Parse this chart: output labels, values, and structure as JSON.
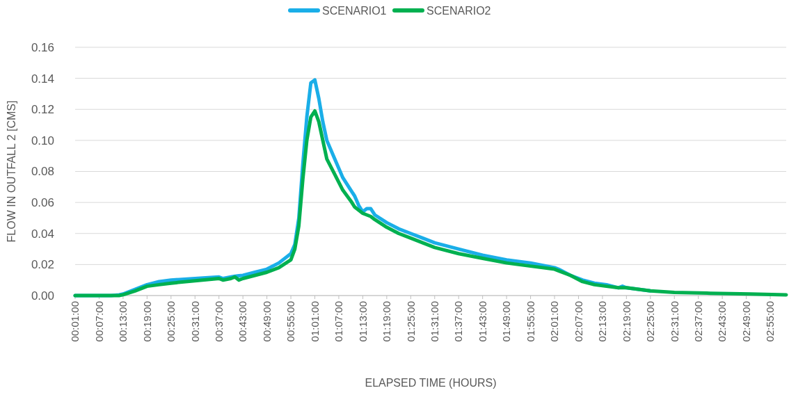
{
  "chart_data": {
    "type": "line",
    "xlabel": "ELAPSED TIME (HOURS)",
    "ylabel": "FLOW IN OUTFALL 2 [CMS]",
    "x": [
      0.0167,
      0.1667,
      0.2,
      0.2167,
      0.2667,
      0.3167,
      0.3667,
      0.4167,
      0.5167,
      0.6167,
      0.6333,
      0.6667,
      0.6833,
      0.7,
      0.7167,
      0.7667,
      0.8167,
      0.8667,
      0.9167,
      0.9333,
      0.95,
      0.9667,
      0.9833,
      1,
      1.0167,
      1.0333,
      1.05,
      1.0667,
      1.1,
      1.1333,
      1.1667,
      1.1833,
      1.2,
      1.2167,
      1.2333,
      1.25,
      1.2667,
      1.3167,
      1.3667,
      1.4167,
      1.4667,
      1.5167,
      1.6167,
      1.7167,
      1.8167,
      1.9167,
      2.0167,
      2.0333,
      2.0833,
      2.1333,
      2.1833,
      2.2333,
      2.2833,
      2.3,
      2.3167,
      2.4167,
      2.5167,
      2.6667,
      2.8333,
      2.9833
    ],
    "series": [
      {
        "name": "SCENARIO1",
        "color": "#1aaee8",
        "values": [
          0,
          0,
          0.0005,
          0.001,
          0.004,
          0.007,
          0.009,
          0.01,
          0.011,
          0.012,
          0.011,
          0.012,
          0.0125,
          0.0128,
          0.013,
          0.015,
          0.017,
          0.021,
          0.027,
          0.033,
          0.05,
          0.085,
          0.115,
          0.137,
          0.139,
          0.127,
          0.112,
          0.1,
          0.088,
          0.076,
          0.068,
          0.064,
          0.058,
          0.054,
          0.056,
          0.056,
          0.052,
          0.047,
          0.043,
          0.04,
          0.037,
          0.034,
          0.03,
          0.026,
          0.023,
          0.021,
          0.018,
          0.017,
          0.013,
          0.01,
          0.008,
          0.007,
          0.005,
          0.006,
          0.005,
          0.003,
          null,
          null,
          null,
          null
        ]
      },
      {
        "name": "SCENARIO2",
        "color": "#00b050",
        "values": [
          0,
          0,
          0,
          0.0005,
          0.003,
          0.006,
          0.007,
          0.008,
          0.0095,
          0.011,
          0.01,
          0.011,
          0.012,
          0.01,
          0.011,
          0.013,
          0.015,
          0.018,
          0.023,
          0.03,
          0.045,
          0.075,
          0.1,
          0.115,
          0.119,
          0.112,
          0.1,
          0.088,
          0.078,
          0.068,
          0.061,
          0.057,
          0.055,
          0.053,
          0.052,
          0.051,
          0.049,
          0.044,
          0.04,
          0.037,
          0.034,
          0.031,
          0.027,
          0.024,
          0.021,
          0.019,
          0.017,
          0.016,
          0.013,
          0.009,
          0.007,
          0.006,
          0.005,
          0.005,
          0.005,
          0.003,
          0.002,
          0.0015,
          0.001,
          0.0005
        ]
      }
    ],
    "xlim": [
      0.0167,
      2.9833
    ],
    "xticks": [
      {
        "value": 0.0167,
        "label": "00:01:00"
      },
      {
        "value": 0.1167,
        "label": "00:07:00"
      },
      {
        "value": 0.2167,
        "label": "00:13:00"
      },
      {
        "value": 0.3167,
        "label": "00:19:00"
      },
      {
        "value": 0.4167,
        "label": "00:25:00"
      },
      {
        "value": 0.5167,
        "label": "00:31:00"
      },
      {
        "value": 0.6167,
        "label": "00:37:00"
      },
      {
        "value": 0.7167,
        "label": "00:43:00"
      },
      {
        "value": 0.8167,
        "label": "00:49:00"
      },
      {
        "value": 0.9167,
        "label": "00:55:00"
      },
      {
        "value": 1.0167,
        "label": "01:01:00"
      },
      {
        "value": 1.1167,
        "label": "01:07:00"
      },
      {
        "value": 1.2167,
        "label": "01:13:00"
      },
      {
        "value": 1.3167,
        "label": "01:19:00"
      },
      {
        "value": 1.4167,
        "label": "01:25:00"
      },
      {
        "value": 1.5167,
        "label": "01:31:00"
      },
      {
        "value": 1.6167,
        "label": "01:37:00"
      },
      {
        "value": 1.7167,
        "label": "01:43:00"
      },
      {
        "value": 1.8167,
        "label": "01:49:00"
      },
      {
        "value": 1.9167,
        "label": "01:55:00"
      },
      {
        "value": 2.0167,
        "label": "02:01:00"
      },
      {
        "value": 2.1167,
        "label": "02:07:00"
      },
      {
        "value": 2.2167,
        "label": "02:13:00"
      },
      {
        "value": 2.3167,
        "label": "02:19:00"
      },
      {
        "value": 2.4167,
        "label": "02:25:00"
      },
      {
        "value": 2.5167,
        "label": "02:31:00"
      },
      {
        "value": 2.6167,
        "label": "02:37:00"
      },
      {
        "value": 2.7167,
        "label": "02:43:00"
      },
      {
        "value": 2.8167,
        "label": "02:49:00"
      },
      {
        "value": 2.9167,
        "label": "02:55:00"
      }
    ],
    "ylim": [
      0,
      0.16
    ],
    "yticks": [
      {
        "value": 0,
        "label": "0.00"
      },
      {
        "value": 0.02,
        "label": "0.02"
      },
      {
        "value": 0.04,
        "label": "0.04"
      },
      {
        "value": 0.06,
        "label": "0.06"
      },
      {
        "value": 0.08,
        "label": "0.08"
      },
      {
        "value": 0.1,
        "label": "0.10"
      },
      {
        "value": 0.12,
        "label": "0.12"
      },
      {
        "value": 0.14,
        "label": "0.14"
      },
      {
        "value": 0.16,
        "label": "0.16"
      }
    ],
    "grid": "y",
    "legend": "top",
    "marker": "none",
    "line_style": "solid"
  }
}
